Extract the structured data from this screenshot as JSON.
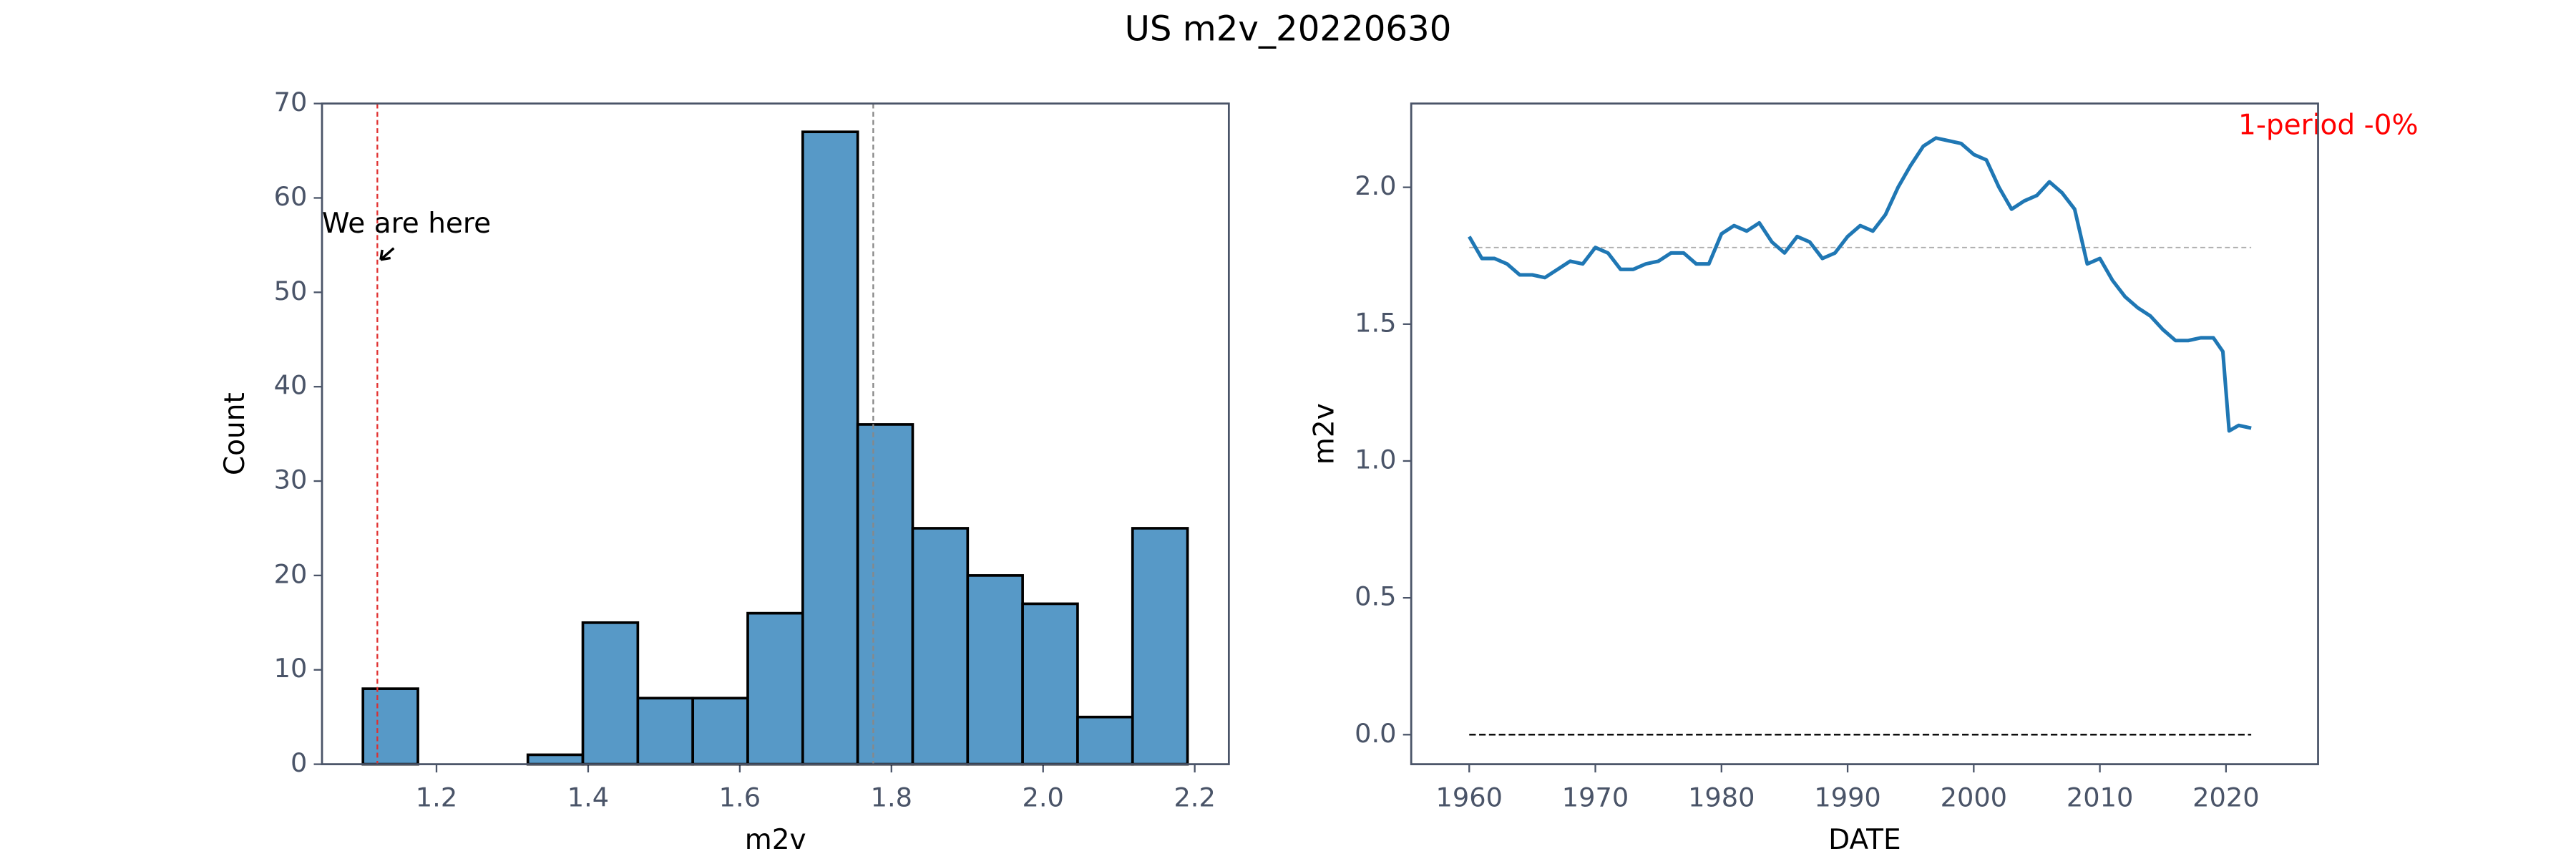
{
  "title": "US m2v_20220630",
  "chart_data": [
    {
      "type": "histogram",
      "xlabel": "m2v",
      "ylabel": "Count",
      "bins": [
        1.103,
        1.1755,
        1.248,
        1.3205,
        1.393,
        1.4655,
        1.538,
        1.6105,
        1.683,
        1.7555,
        1.828,
        1.9005,
        1.973,
        2.0455,
        2.118,
        2.1905
      ],
      "values": [
        8,
        0,
        0,
        1,
        15,
        7,
        7,
        16,
        67,
        36,
        25,
        20,
        17,
        5,
        25
      ],
      "color": "#5799c7",
      "edgecolor": "#000000",
      "xlim": [
        1.049,
        2.245
      ],
      "xticks": [
        1.2,
        1.4,
        1.6,
        1.8,
        {
          "value": 2.0,
          "label": "2.0"
        },
        2.2
      ],
      "ylim": [
        0,
        70
      ],
      "yticks": [
        0,
        10,
        20,
        30,
        40,
        50,
        60,
        70
      ],
      "vlines": [
        {
          "value": 1.122,
          "color": "#e03030"
        },
        {
          "value": 1.776,
          "color": "#888888"
        }
      ],
      "annotation": "We are here"
    },
    {
      "type": "line",
      "xlabel": "DATE",
      "ylabel": "m2v",
      "x": [
        1960,
        1961,
        1962,
        1963,
        1964,
        1965,
        1966,
        1967,
        1968,
        1969,
        1970,
        1971,
        1972,
        1973,
        1974,
        1975,
        1976,
        1977,
        1978,
        1979,
        1980,
        1981,
        1982,
        1983,
        1984,
        1985,
        1986,
        1987,
        1988,
        1989,
        1990,
        1991,
        1992,
        1993,
        1994,
        1995,
        1996,
        1997,
        1998,
        1999,
        2000,
        2001,
        2002,
        2003,
        2004,
        2005,
        2006,
        2007,
        2008,
        2009,
        2010,
        2011,
        2012,
        2013,
        2014,
        2015,
        2016,
        2017,
        2018,
        2019,
        2019.75,
        2020.25,
        2021,
        2022
      ],
      "values": [
        1.82,
        1.74,
        1.74,
        1.72,
        1.68,
        1.68,
        1.67,
        1.7,
        1.73,
        1.72,
        1.78,
        1.76,
        1.7,
        1.7,
        1.72,
        1.73,
        1.76,
        1.76,
        1.72,
        1.72,
        1.83,
        1.86,
        1.84,
        1.87,
        1.8,
        1.76,
        1.82,
        1.8,
        1.74,
        1.76,
        1.82,
        1.86,
        1.84,
        1.9,
        2.0,
        2.08,
        2.15,
        2.18,
        2.17,
        2.16,
        2.12,
        2.1,
        2.0,
        1.92,
        1.95,
        1.97,
        2.02,
        1.98,
        1.92,
        1.72,
        1.74,
        1.66,
        1.6,
        1.56,
        1.53,
        1.48,
        1.44,
        1.44,
        1.45,
        1.45,
        1.4,
        1.11,
        1.13,
        1.12
      ],
      "color": "#1f77b4",
      "xlim": [
        1955.4,
        2027.3
      ],
      "xticks": [
        1960,
        1970,
        1980,
        1990,
        2000,
        2010,
        2020
      ],
      "ylim": [
        -0.108,
        2.306
      ],
      "yticks": [
        {
          "value": 0,
          "label": "0.0"
        },
        0.5,
        {
          "value": 1,
          "label": "1.0"
        },
        1.5,
        {
          "value": 2,
          "label": "2.0"
        }
      ],
      "hlines": [
        {
          "value": 1.78,
          "color": "#aaaaaa"
        },
        {
          "value": 0,
          "color": "#000000"
        }
      ],
      "annotation": "1-period -0%",
      "annotation_color": "#ff0000"
    }
  ]
}
